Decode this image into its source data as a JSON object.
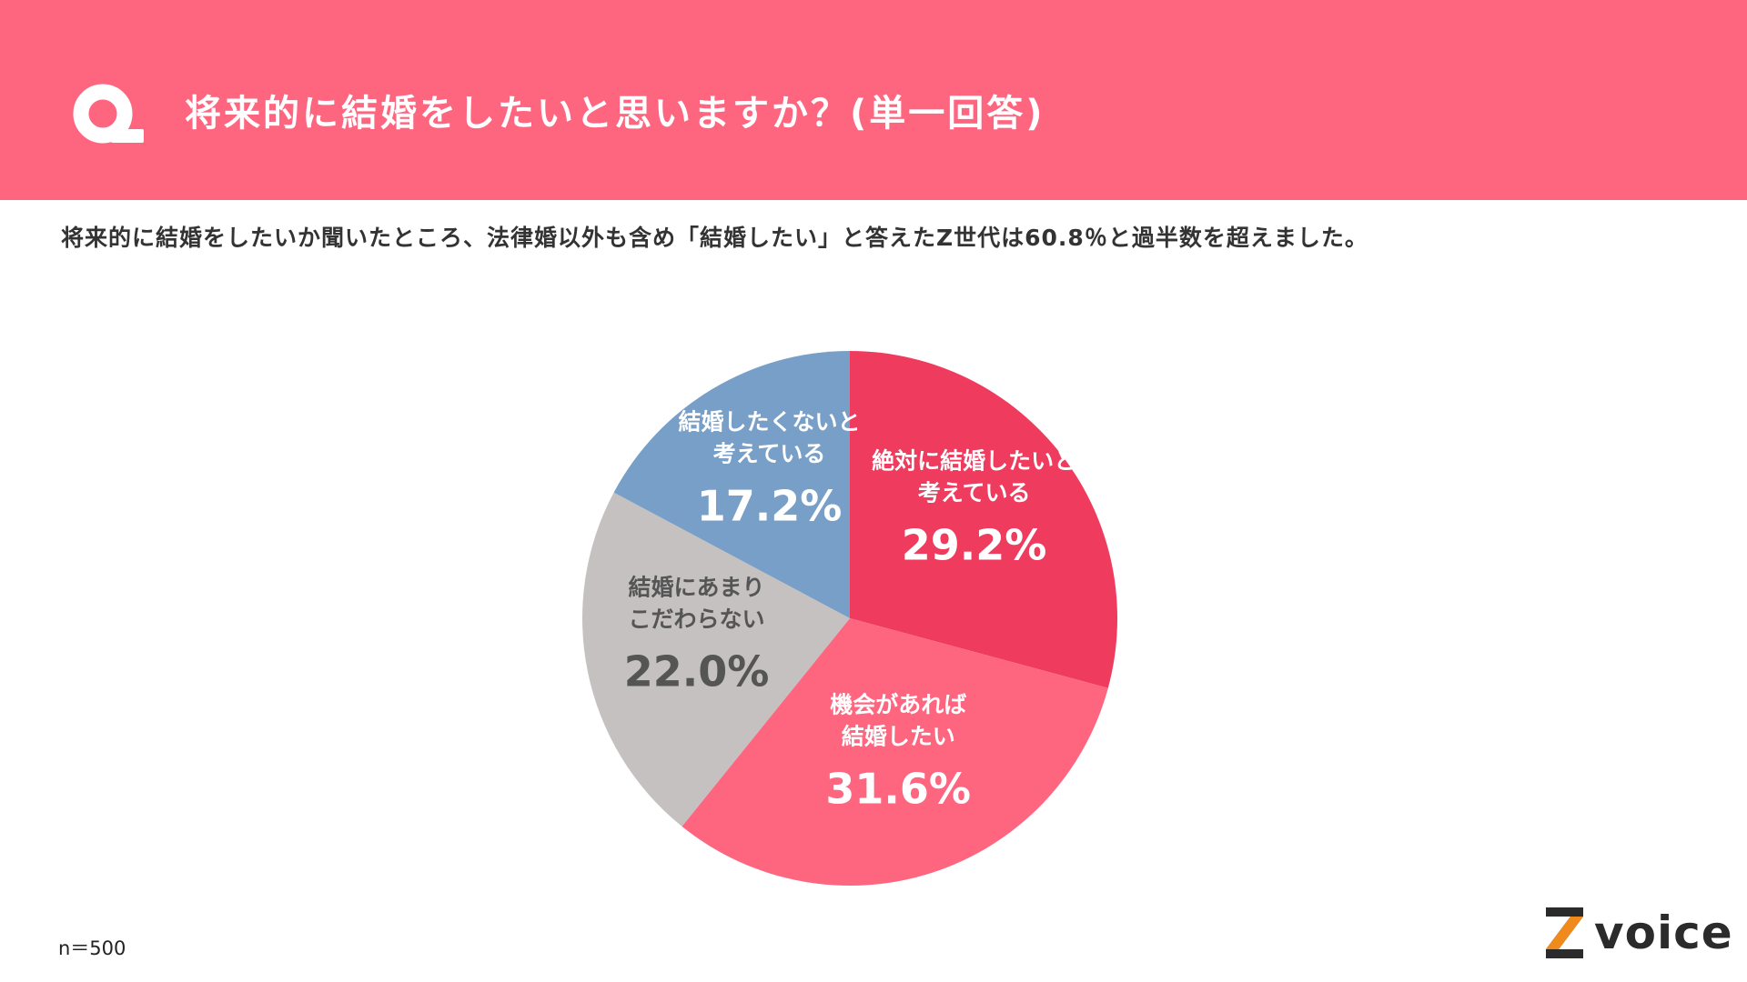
{
  "header": {
    "title": "将来的に結婚をしたいと思いますか？(単一回答)",
    "background": "#fe6680"
  },
  "summary": "将来的に結婚をしたいか聞いたところ、法律婚以外も含め「結婚したい」と答えたZ世代は60.8％と過半数を超えました。",
  "footer": {
    "sample_size": "n＝500",
    "logo_text": "voice",
    "logo_accent": "#f08a1c"
  },
  "chart_data": {
    "type": "pie",
    "title": "",
    "start_angle_deg": 0,
    "direction": "clockwise",
    "slices": [
      {
        "label_line1": "絶対に結婚したいと",
        "label_line2": "考えている",
        "value": 29.2,
        "value_label": "29.2%",
        "color": "#ee3b5e",
        "label_color": "#ffffff"
      },
      {
        "label_line1": "機会があれば",
        "label_line2": "結婚したい",
        "value": 31.6,
        "value_label": "31.6%",
        "color": "#fe6680",
        "label_color": "#ffffff"
      },
      {
        "label_line1": "結婚にあまり",
        "label_line2": "こだわらない",
        "value": 22.0,
        "value_label": "22.0%",
        "color": "#c4c1c0",
        "label_color": "#555555"
      },
      {
        "label_line1": "結婚したくないと",
        "label_line2": "考えている",
        "value": 17.2,
        "value_label": "17.2%",
        "color": "#789fc7",
        "label_color": "#ffffff"
      }
    ]
  }
}
